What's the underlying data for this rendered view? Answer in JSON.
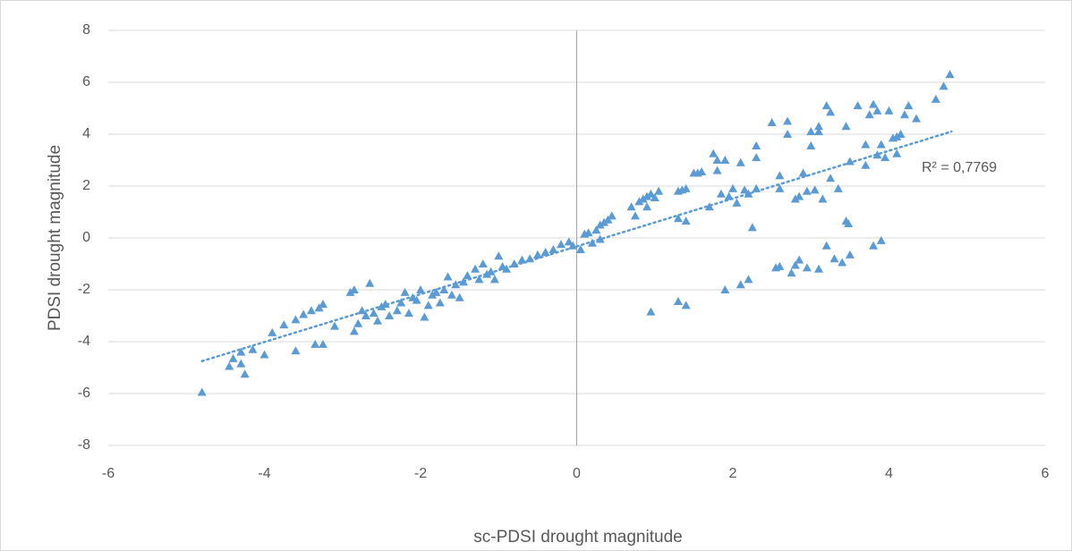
{
  "chart_data": {
    "type": "scatter",
    "x_label": "sc-PDSI drought magnitude",
    "y_label": "PDSI drought magnitude",
    "annotation": "R² = 0,7769",
    "color": "#5b9bd5",
    "xlim": [
      -6,
      6
    ],
    "xticks": [
      -6,
      -4,
      -2,
      0,
      2,
      4,
      6
    ],
    "ylim": [
      -8,
      8
    ],
    "yticks": [
      -8,
      -6,
      -4,
      -2,
      0,
      2,
      4,
      6,
      8
    ],
    "grid": "y",
    "trendline": {
      "x": [
        -4.8,
        4.8
      ],
      "y": [
        -4.75,
        4.1
      ]
    },
    "x": [
      -4.8,
      -4.25,
      -4.3,
      -4.4,
      -4.45,
      -4.3,
      -4.15,
      -4.0,
      -3.9,
      -3.75,
      -3.6,
      -3.6,
      -3.5,
      -3.4,
      -3.35,
      -3.25,
      -3.3,
      -3.25,
      -3.1,
      -2.9,
      -2.85,
      -2.85,
      -2.8,
      -2.75,
      -2.7,
      -2.65,
      -2.6,
      -2.55,
      -2.5,
      -2.45,
      -2.4,
      -2.3,
      -2.25,
      -2.2,
      -2.15,
      -2.1,
      -2.05,
      -2,
      -1.95,
      -1.9,
      -1.85,
      -1.8,
      -1.75,
      -1.7,
      -1.65,
      -1.6,
      -1.55,
      -1.5,
      -1.45,
      -1.4,
      -1.3,
      -1.25,
      -1.2,
      -1.15,
      -1.1,
      -1.05,
      -1,
      -0.95,
      -0.9,
      -0.8,
      -0.7,
      -0.6,
      -0.5,
      -0.4,
      -0.3,
      -0.2,
      -0.1,
      -0.05,
      0.05,
      0.1,
      0.15,
      0.2,
      0.25,
      0.3,
      0.35,
      0.4,
      0.45,
      0.3,
      0.7,
      0.75,
      0.8,
      0.85,
      0.9,
      0.95,
      1,
      1.05,
      0.9,
      1.3,
      1.35,
      1.4,
      1.3,
      1.4,
      1.5,
      1.55,
      1.6,
      1.7,
      1.75,
      1.8,
      1.8,
      1.9,
      1.85,
      1.95,
      2,
      2.05,
      2.1,
      2.15,
      2.2,
      2.25,
      2.3,
      2.3,
      2.3,
      2.5,
      2.6,
      2.7,
      2.7,
      2.6,
      2.8,
      2.85,
      2.9,
      2.95,
      3,
      3,
      3.05,
      3.1,
      3.1,
      3.15,
      3.2,
      3.25,
      3.25,
      3.35,
      3.45,
      3.5,
      3.6,
      3.7,
      3.7,
      3.75,
      3.8,
      3.85,
      3.9,
      3.85,
      3.95,
      4,
      4.05,
      4.1,
      4.15,
      4.1,
      4.2,
      4.25,
      4.35,
      4.6,
      4.7,
      4.78,
      0.95,
      1.3,
      1.4,
      1.9,
      2.1,
      2.2,
      2.55,
      2.6,
      2.75,
      2.8,
      2.85,
      2.95,
      3.1,
      3.2,
      3.3,
      3.4,
      3.5,
      3.45,
      3.48,
      3.8,
      3.9
    ],
    "values": [
      -5.95,
      -5.25,
      -4.85,
      -4.65,
      -4.95,
      -4.4,
      -4.3,
      -4.5,
      -3.65,
      -3.35,
      -3.15,
      -4.35,
      -2.95,
      -2.8,
      -4.1,
      -4.1,
      -2.7,
      -2.55,
      -3.4,
      -2.1,
      -2,
      -3.6,
      -3.3,
      -2.8,
      -3,
      -1.75,
      -2.9,
      -3.2,
      -2.65,
      -2.55,
      -3,
      -2.8,
      -2.5,
      -2.1,
      -2.9,
      -2.3,
      -2.4,
      -2,
      -3.05,
      -2.6,
      -2.2,
      -2.1,
      -2.5,
      -2,
      -1.5,
      -2.2,
      -1.8,
      -2.3,
      -1.7,
      -1.45,
      -1.2,
      -1.6,
      -1,
      -1.4,
      -1.3,
      -1.6,
      -0.7,
      -1.1,
      -1.2,
      -1,
      -0.85,
      -0.8,
      -0.65,
      -0.55,
      -0.45,
      -0.25,
      -0.15,
      -0.3,
      -0.45,
      0.15,
      0.2,
      -0.2,
      0.3,
      0.5,
      0.6,
      0.7,
      0.85,
      -0.05,
      1.2,
      0.85,
      1.4,
      1.5,
      1.6,
      1.7,
      1.55,
      1.8,
      1.2,
      1.8,
      1.85,
      1.9,
      0.75,
      0.65,
      2.5,
      2.5,
      2.55,
      1.2,
      3.25,
      3,
      2.6,
      3,
      1.7,
      1.6,
      1.9,
      1.35,
      2.9,
      1.85,
      1.7,
      0.4,
      3.55,
      3.1,
      1.9,
      4.45,
      2.4,
      4,
      4.5,
      1.9,
      1.5,
      1.6,
      2.5,
      1.8,
      4.1,
      3.55,
      1.85,
      4.3,
      4.1,
      1.5,
      5.1,
      4.85,
      2.3,
      1.9,
      4.3,
      2.95,
      5.1,
      2.8,
      3.6,
      4.75,
      5.15,
      4.9,
      3.6,
      3.2,
      3.1,
      4.9,
      3.85,
      3.9,
      4,
      3.25,
      4.75,
      5.1,
      4.6,
      5.35,
      5.85,
      6.3,
      -2.85,
      -2.45,
      -2.6,
      -2,
      -1.8,
      -1.6,
      -1.15,
      -1.1,
      -1.35,
      -1.05,
      -0.85,
      -1.15,
      -1.2,
      -0.3,
      -0.8,
      -0.95,
      -0.65,
      0.65,
      0.55,
      -0.3,
      -0.1
    ]
  }
}
